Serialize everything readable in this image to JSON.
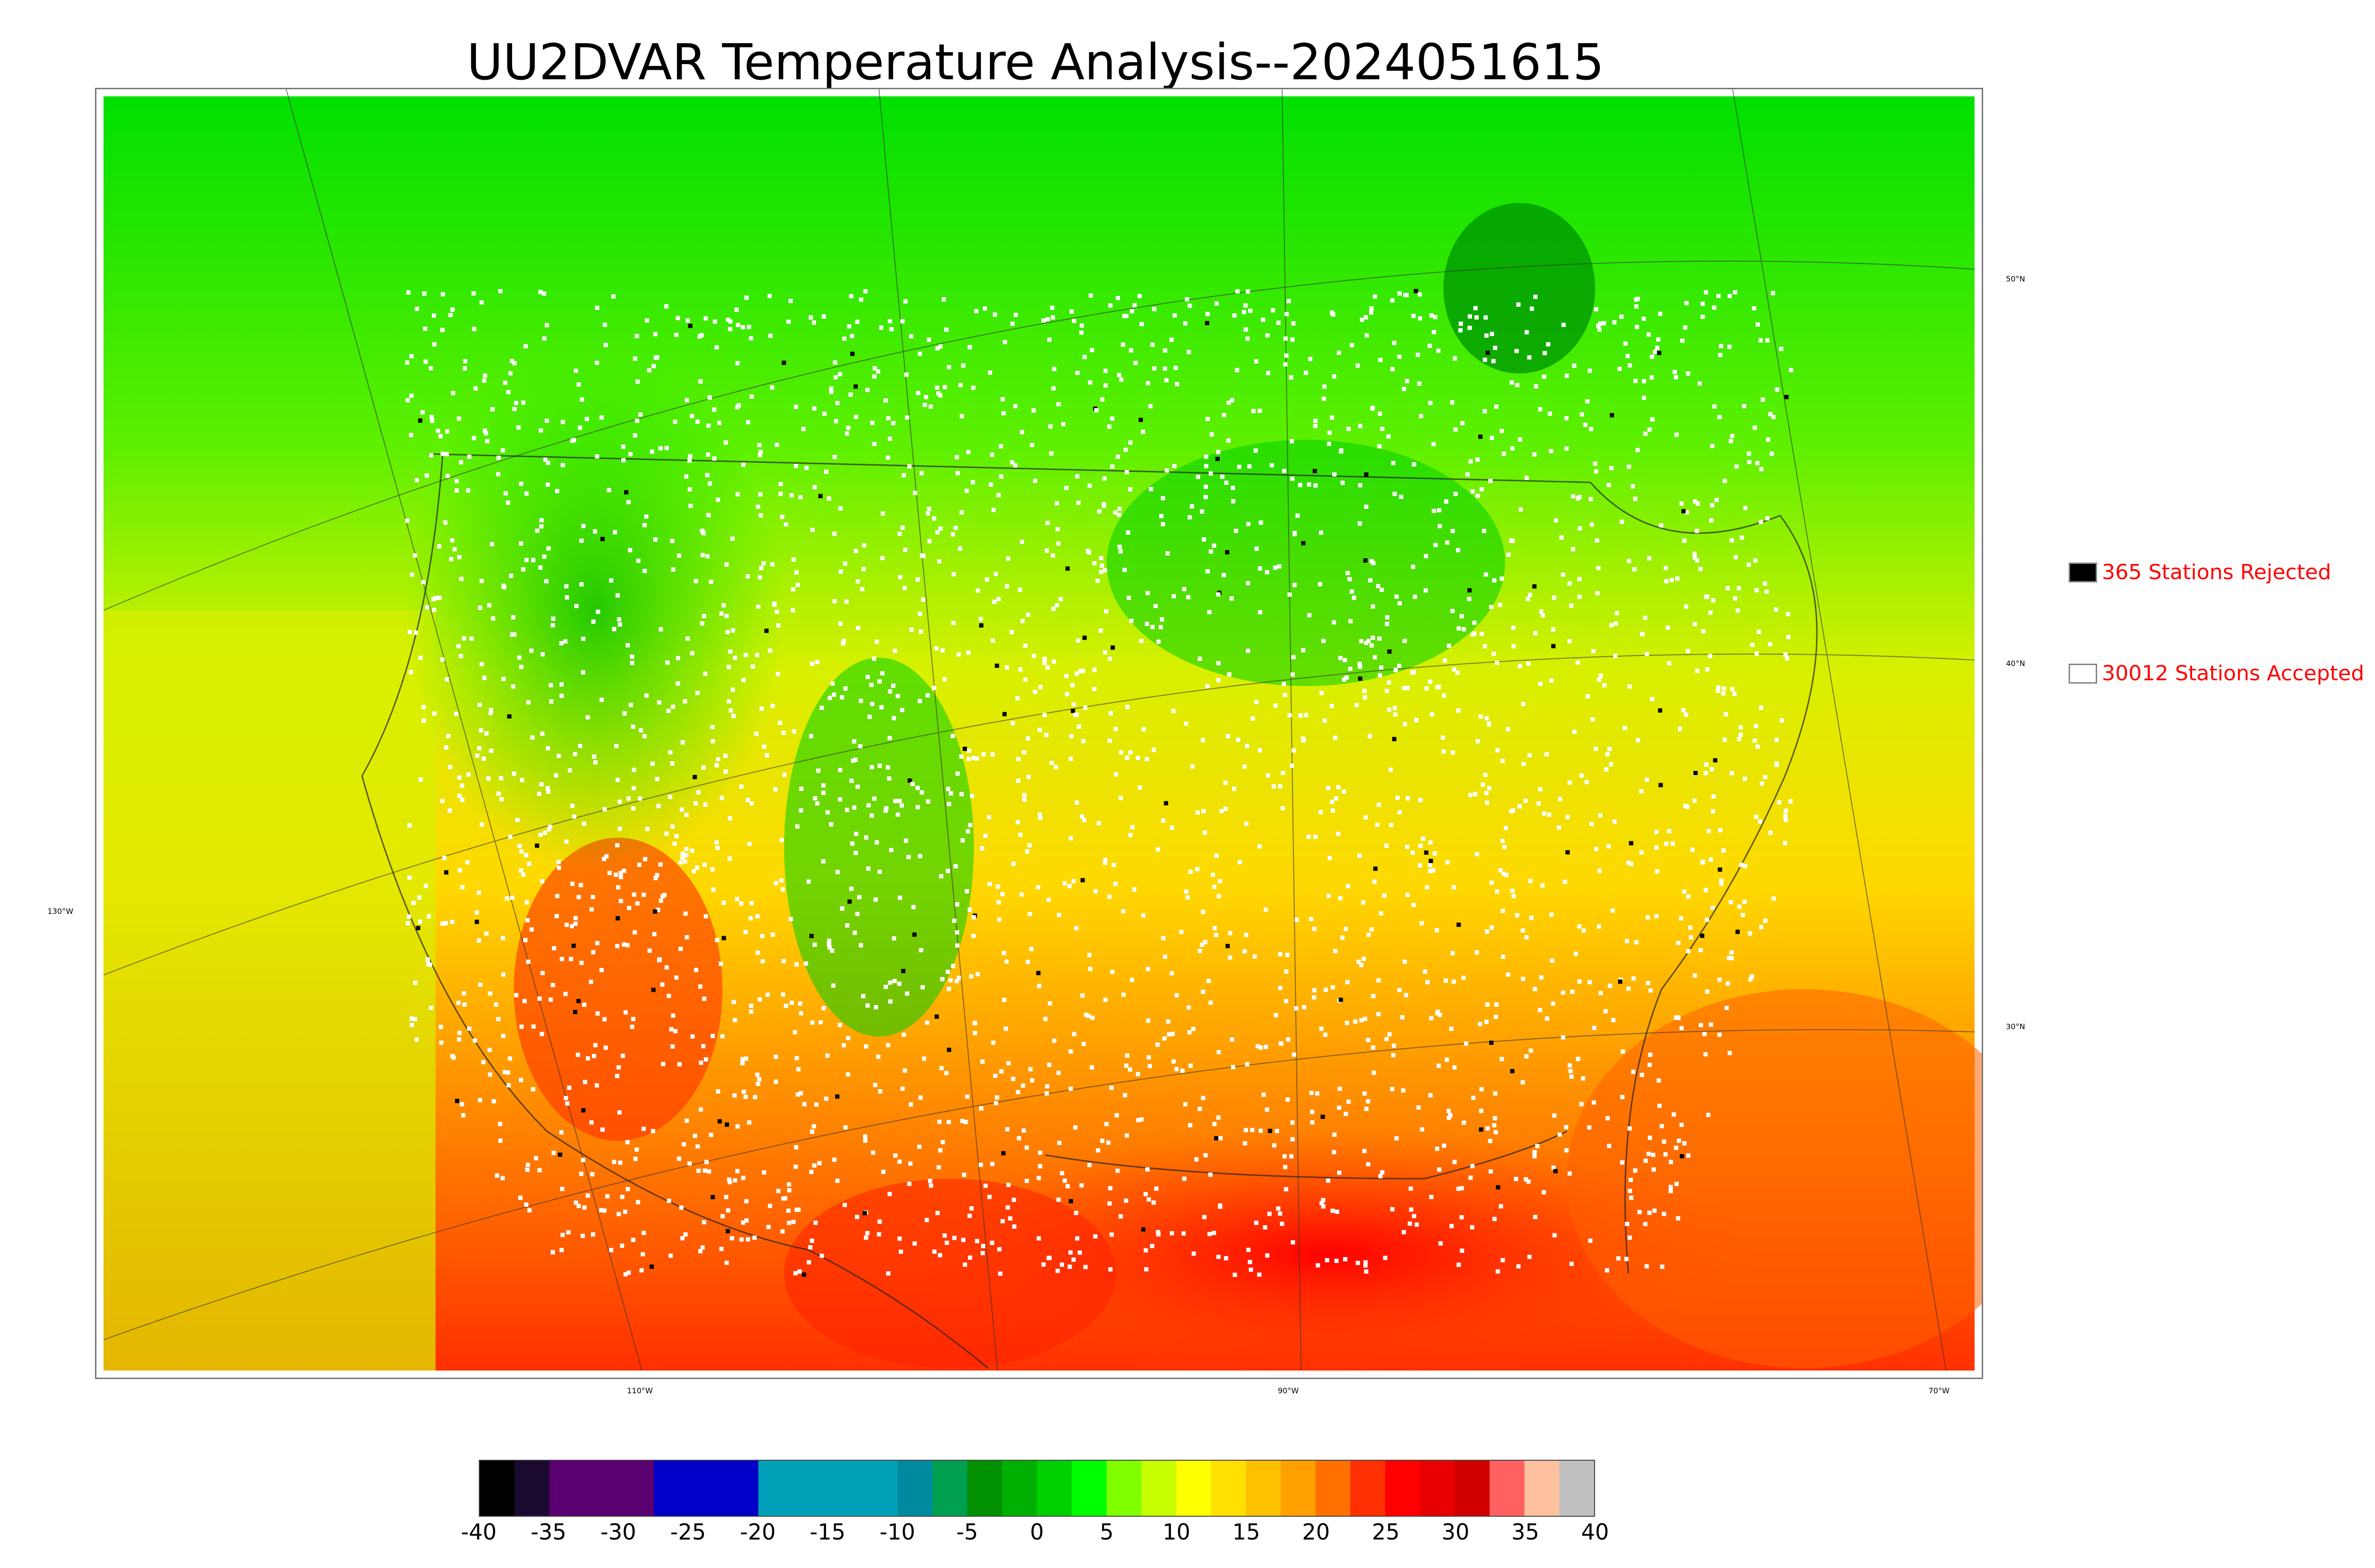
{
  "title": "UU2DVAR Temperature Analysis--2024051615",
  "map": {
    "lat_labels": [
      "50°N",
      "40°N",
      "30°N"
    ],
    "lon_labels": [
      "130°W",
      "110°W",
      "90°W",
      "70°W"
    ]
  },
  "legend": {
    "rejected": {
      "label": "365 Stations Rejected",
      "color": "#000000"
    },
    "accepted": {
      "label": "30012 Stations Accepted",
      "color": "#ffffff"
    }
  },
  "colorbar": {
    "ticks": [
      "-40",
      "-35",
      "-30",
      "-25",
      "-20",
      "-15",
      "-10",
      "-5",
      "0",
      "5",
      "10",
      "15",
      "20",
      "25",
      "30",
      "35",
      "40"
    ],
    "colors": [
      "#000000",
      "#1a0a30",
      "#5a0070",
      "#5a0070",
      "#5a0070",
      "#0000c8",
      "#0000c8",
      "#0000c8",
      "#00a0b8",
      "#00a0b8",
      "#00a0b8",
      "#00a0b8",
      "#008aa0",
      "#00a050",
      "#009000",
      "#00b000",
      "#00d000",
      "#00ff00",
      "#80ff00",
      "#c8ff00",
      "#ffff00",
      "#ffe000",
      "#ffc000",
      "#ffa000",
      "#ff7000",
      "#ff3000",
      "#ff0000",
      "#e80000",
      "#d00000",
      "#ff6060",
      "#ffc0a0",
      "#c0c0c0"
    ]
  },
  "colors": {
    "land_north": "#00e000",
    "land_mid": "#e8f000",
    "land_south": "#ff8000",
    "gulf": "#ff2000",
    "pacific": "#c8f000",
    "atlantic": "#ffa000",
    "water_lakes": "#20c820"
  }
}
